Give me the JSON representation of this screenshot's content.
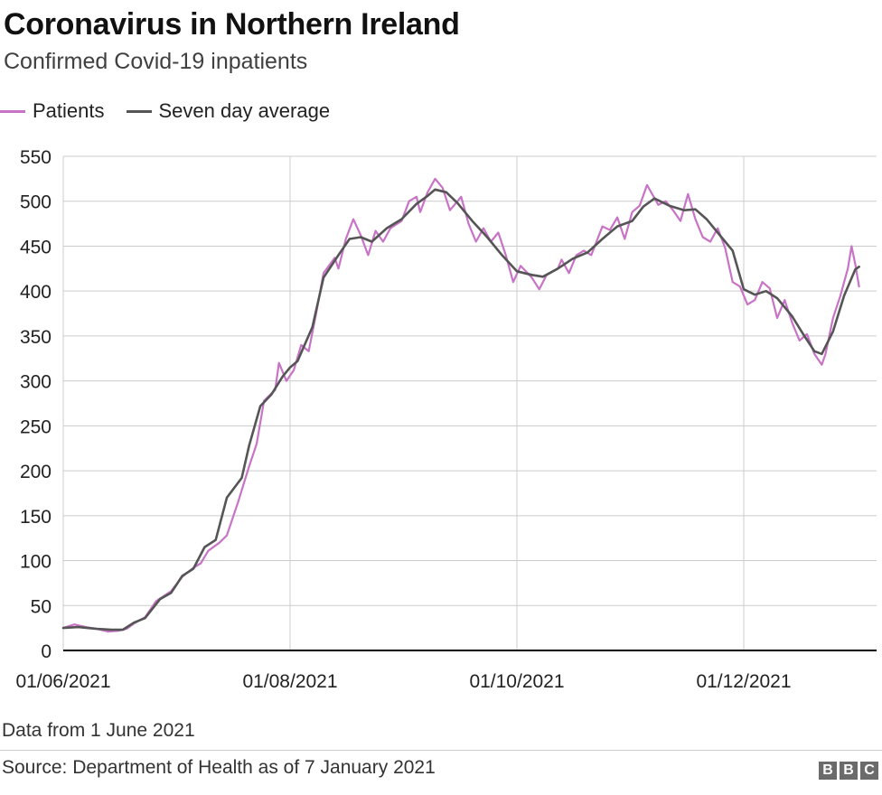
{
  "header": {
    "title": "Coronavirus in Northern Ireland",
    "subtitle": "Confirmed Covid-19 inpatients"
  },
  "footer": {
    "note": "Data from 1 June 2021",
    "source": "Source: Department of Health as of 7 January 2021",
    "logo": [
      "B",
      "B",
      "C"
    ]
  },
  "colors": {
    "patients": "#c873c6",
    "average": "#555555",
    "grid": "#cccccc",
    "axis": "#000000"
  },
  "chart_data": {
    "type": "line",
    "x_start": "2021-06-01",
    "x_end": "2021-12-31",
    "ylim": [
      0,
      550
    ],
    "yticks": [
      0,
      50,
      100,
      150,
      200,
      250,
      300,
      350,
      400,
      450,
      500,
      550
    ],
    "xticks": [
      {
        "date": "2021-06-01",
        "label": "01/06/2021"
      },
      {
        "date": "2021-08-01",
        "label": "01/08/2021"
      },
      {
        "date": "2021-10-01",
        "label": "01/10/2021"
      },
      {
        "date": "2021-12-01",
        "label": "01/12/2021"
      }
    ],
    "grid": true,
    "legend_position": "top-left",
    "xlabel": "",
    "ylabel": "",
    "series": [
      {
        "name": "Patients",
        "color": "#c873c6",
        "points": [
          [
            "2021-06-01",
            25
          ],
          [
            "2021-06-04",
            29
          ],
          [
            "2021-06-07",
            26
          ],
          [
            "2021-06-10",
            24
          ],
          [
            "2021-06-13",
            21
          ],
          [
            "2021-06-16",
            22
          ],
          [
            "2021-06-18",
            24
          ],
          [
            "2021-06-20",
            30
          ],
          [
            "2021-06-23",
            37
          ],
          [
            "2021-06-26",
            55
          ],
          [
            "2021-06-30",
            66
          ],
          [
            "2021-07-03",
            82
          ],
          [
            "2021-07-06",
            92
          ],
          [
            "2021-07-08",
            97
          ],
          [
            "2021-07-10",
            111
          ],
          [
            "2021-07-13",
            120
          ],
          [
            "2021-07-15",
            128
          ],
          [
            "2021-07-18",
            165
          ],
          [
            "2021-07-21",
            205
          ],
          [
            "2021-07-23",
            230
          ],
          [
            "2021-07-25",
            278
          ],
          [
            "2021-07-28",
            290
          ],
          [
            "2021-07-29",
            320
          ],
          [
            "2021-07-31",
            300
          ],
          [
            "2021-08-02",
            312
          ],
          [
            "2021-08-04",
            340
          ],
          [
            "2021-08-06",
            333
          ],
          [
            "2021-08-08",
            375
          ],
          [
            "2021-08-10",
            420
          ],
          [
            "2021-08-13",
            437
          ],
          [
            "2021-08-14",
            425
          ],
          [
            "2021-08-16",
            458
          ],
          [
            "2021-08-18",
            480
          ],
          [
            "2021-08-20",
            462
          ],
          [
            "2021-08-22",
            440
          ],
          [
            "2021-08-24",
            467
          ],
          [
            "2021-08-26",
            455
          ],
          [
            "2021-08-28",
            470
          ],
          [
            "2021-08-31",
            478
          ],
          [
            "2021-09-02",
            500
          ],
          [
            "2021-09-04",
            505
          ],
          [
            "2021-09-05",
            488
          ],
          [
            "2021-09-07",
            510
          ],
          [
            "2021-09-09",
            525
          ],
          [
            "2021-09-11",
            515
          ],
          [
            "2021-09-13",
            490
          ],
          [
            "2021-09-16",
            505
          ],
          [
            "2021-09-18",
            475
          ],
          [
            "2021-09-20",
            455
          ],
          [
            "2021-09-22",
            470
          ],
          [
            "2021-09-24",
            455
          ],
          [
            "2021-09-26",
            465
          ],
          [
            "2021-09-28",
            440
          ],
          [
            "2021-09-30",
            410
          ],
          [
            "2021-10-02",
            428
          ],
          [
            "2021-10-05",
            415
          ],
          [
            "2021-10-07",
            402
          ],
          [
            "2021-10-09",
            418
          ],
          [
            "2021-10-12",
            425
          ],
          [
            "2021-10-13",
            435
          ],
          [
            "2021-10-15",
            420
          ],
          [
            "2021-10-17",
            440
          ],
          [
            "2021-10-19",
            445
          ],
          [
            "2021-10-21",
            440
          ],
          [
            "2021-10-24",
            472
          ],
          [
            "2021-10-26",
            468
          ],
          [
            "2021-10-28",
            482
          ],
          [
            "2021-10-30",
            458
          ],
          [
            "2021-11-01",
            488
          ],
          [
            "2021-11-03",
            495
          ],
          [
            "2021-11-05",
            518
          ],
          [
            "2021-11-08",
            496
          ],
          [
            "2021-11-10",
            500
          ],
          [
            "2021-11-12",
            490
          ],
          [
            "2021-11-14",
            478
          ],
          [
            "2021-11-16",
            508
          ],
          [
            "2021-11-18",
            480
          ],
          [
            "2021-11-20",
            460
          ],
          [
            "2021-11-22",
            455
          ],
          [
            "2021-11-24",
            470
          ],
          [
            "2021-11-26",
            448
          ],
          [
            "2021-11-28",
            410
          ],
          [
            "2021-11-30",
            405
          ],
          [
            "2021-12-02",
            385
          ],
          [
            "2021-12-04",
            390
          ],
          [
            "2021-12-06",
            410
          ],
          [
            "2021-12-08",
            403
          ],
          [
            "2021-12-10",
            370
          ],
          [
            "2021-12-12",
            390
          ],
          [
            "2021-12-14",
            365
          ],
          [
            "2021-12-16",
            345
          ],
          [
            "2021-12-18",
            352
          ],
          [
            "2021-12-20",
            330
          ],
          [
            "2021-12-22",
            318
          ],
          [
            "2021-12-23",
            330
          ],
          [
            "2021-12-25",
            370
          ],
          [
            "2021-12-27",
            395
          ],
          [
            "2021-12-29",
            425
          ],
          [
            "2021-12-30",
            450
          ],
          [
            "2021-12-31",
            430
          ],
          [
            "2022-01-01",
            405
          ]
        ]
      },
      {
        "name": "Seven day average",
        "color": "#555555",
        "points": [
          [
            "2021-06-01",
            25
          ],
          [
            "2021-06-05",
            26
          ],
          [
            "2021-06-10",
            24
          ],
          [
            "2021-06-14",
            23
          ],
          [
            "2021-06-17",
            23
          ],
          [
            "2021-06-20",
            31
          ],
          [
            "2021-06-23",
            36
          ],
          [
            "2021-06-27",
            57
          ],
          [
            "2021-06-30",
            64
          ],
          [
            "2021-07-03",
            83
          ],
          [
            "2021-07-06",
            91
          ],
          [
            "2021-07-09",
            115
          ],
          [
            "2021-07-12",
            123
          ],
          [
            "2021-07-15",
            170
          ],
          [
            "2021-07-19",
            192
          ],
          [
            "2021-07-21",
            228
          ],
          [
            "2021-07-24",
            272
          ],
          [
            "2021-07-27",
            285
          ],
          [
            "2021-07-30",
            305
          ],
          [
            "2021-08-01",
            315
          ],
          [
            "2021-08-03",
            322
          ],
          [
            "2021-08-07",
            360
          ],
          [
            "2021-08-10",
            415
          ],
          [
            "2021-08-14",
            440
          ],
          [
            "2021-08-17",
            458
          ],
          [
            "2021-08-20",
            460
          ],
          [
            "2021-08-23",
            455
          ],
          [
            "2021-08-27",
            470
          ],
          [
            "2021-08-31",
            480
          ],
          [
            "2021-09-04",
            497
          ],
          [
            "2021-09-07",
            506
          ],
          [
            "2021-09-09",
            513
          ],
          [
            "2021-09-12",
            510
          ],
          [
            "2021-09-15",
            498
          ],
          [
            "2021-09-19",
            478
          ],
          [
            "2021-09-23",
            460
          ],
          [
            "2021-09-27",
            440
          ],
          [
            "2021-10-01",
            422
          ],
          [
            "2021-10-05",
            418
          ],
          [
            "2021-10-08",
            416
          ],
          [
            "2021-10-12",
            425
          ],
          [
            "2021-10-16",
            436
          ],
          [
            "2021-10-20",
            443
          ],
          [
            "2021-10-24",
            458
          ],
          [
            "2021-10-28",
            472
          ],
          [
            "2021-11-01",
            478
          ],
          [
            "2021-11-04",
            494
          ],
          [
            "2021-11-07",
            503
          ],
          [
            "2021-11-11",
            495
          ],
          [
            "2021-11-15",
            490
          ],
          [
            "2021-11-18",
            491
          ],
          [
            "2021-11-21",
            480
          ],
          [
            "2021-11-24",
            465
          ],
          [
            "2021-11-28",
            445
          ],
          [
            "2021-12-01",
            402
          ],
          [
            "2021-12-04",
            396
          ],
          [
            "2021-12-07",
            400
          ],
          [
            "2021-12-10",
            392
          ],
          [
            "2021-12-14",
            372
          ],
          [
            "2021-12-17",
            352
          ],
          [
            "2021-12-20",
            333
          ],
          [
            "2021-12-22",
            330
          ],
          [
            "2021-12-25",
            355
          ],
          [
            "2021-12-28",
            395
          ],
          [
            "2021-12-31",
            424
          ],
          [
            "2022-01-01",
            427
          ]
        ]
      }
    ]
  }
}
